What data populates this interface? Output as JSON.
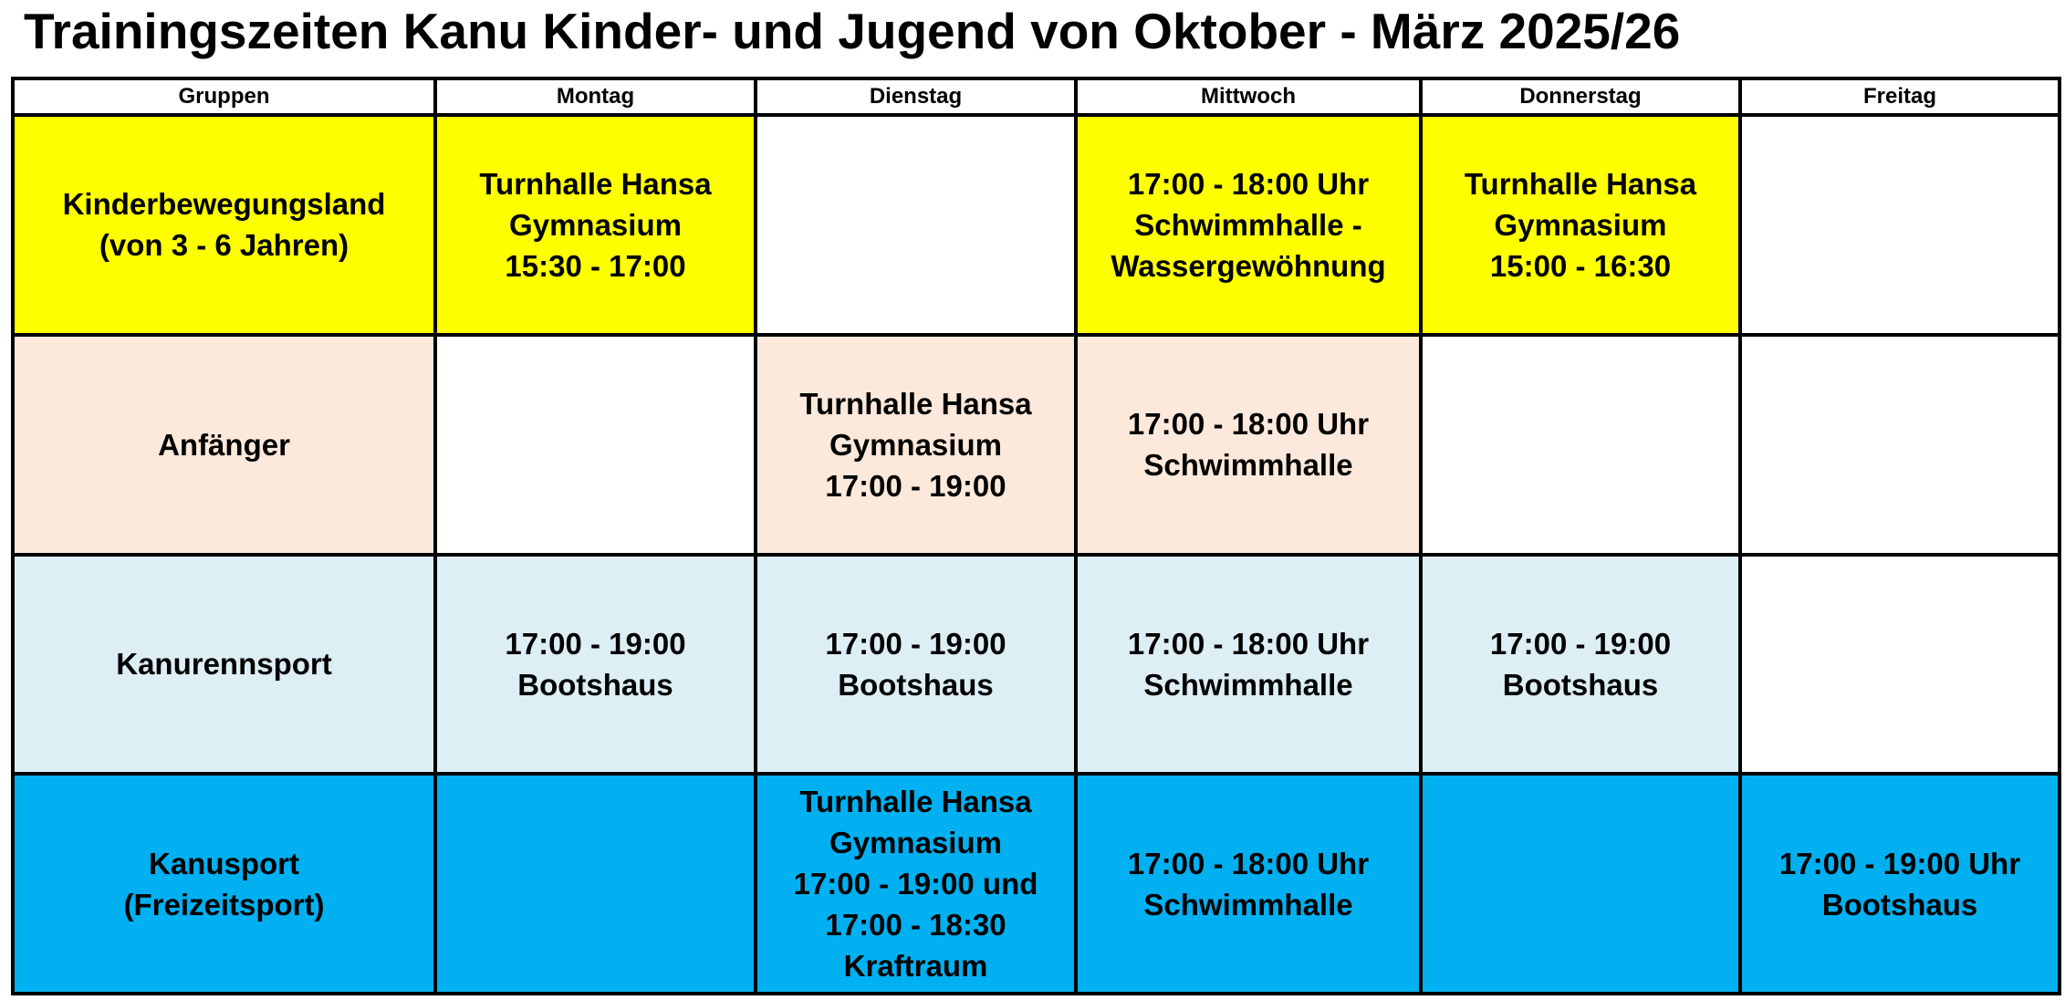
{
  "title": "Trainingszeiten Kanu Kinder- und Jugend von Oktober - März 2025/26",
  "columns": [
    "Gruppen",
    "Montag",
    "Dienstag",
    "Mittwoch",
    "Donnerstag",
    "Freitag"
  ],
  "colors": {
    "yellow": "#FFFF00",
    "peach": "#FCE9DB",
    "light_blue": "#DDEEF5",
    "blue": "#00B0F0",
    "white": "#FFFFFF"
  },
  "rows": [
    {
      "group": "Kinderbewegungsland\n(von 3 - 6 Jahren)",
      "color": "#FFFF00",
      "cells": [
        "Turnhalle Hansa\nGymnasium\n15:30 - 17:00",
        "",
        "17:00 - 18:00 Uhr\nSchwimmhalle -\nWassergewöhnung",
        "Turnhalle Hansa\nGymnasium\n15:00 - 16:30",
        ""
      ]
    },
    {
      "group": "Anfänger",
      "color": "#FCE9DB",
      "cells": [
        "",
        "Turnhalle Hansa\nGymnasium\n17:00 - 19:00",
        "17:00 - 18:00 Uhr\nSchwimmhalle",
        "",
        ""
      ]
    },
    {
      "group": "Kanurennsport",
      "color": "#DDEEF5",
      "cells": [
        "17:00 - 19:00\nBootshaus",
        "17:00 - 19:00\nBootshaus",
        "17:00 - 18:00 Uhr\nSchwimmhalle",
        "17:00 - 19:00\nBootshaus",
        ""
      ]
    },
    {
      "group": "Kanusport\n(Freizeitsport)",
      "color": "#00B0F0",
      "cells": [
        "",
        "Turnhalle Hansa\nGymnasium\n17:00 - 19:00   und\n17:00 - 18:30\nKraftraum",
        "17:00 - 18:00 Uhr\nSchwimmhalle",
        "",
        "17:00 - 19:00 Uhr\nBootshaus"
      ]
    }
  ]
}
